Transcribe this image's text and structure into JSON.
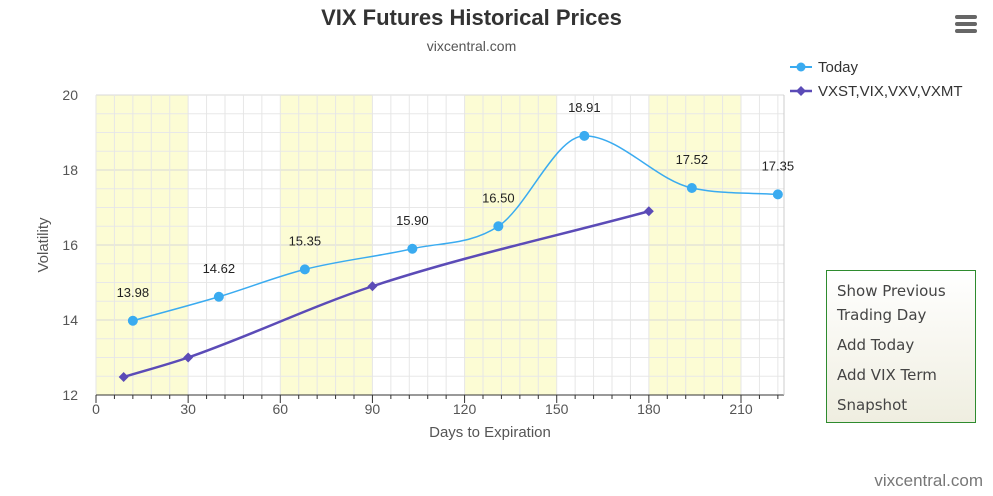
{
  "chart_data": {
    "type": "line",
    "title": "VIX Futures Historical Prices",
    "subtitle": "vixcentral.com",
    "xlabel": "Days to Expiration",
    "ylabel": "Volatility",
    "xlim": [
      0,
      224
    ],
    "ylim": [
      12,
      20
    ],
    "xticks": [
      0,
      30,
      60,
      90,
      120,
      150,
      180,
      210
    ],
    "yticks": [
      12,
      14,
      16,
      18,
      20
    ],
    "bands": [
      [
        0,
        30
      ],
      [
        60,
        90
      ],
      [
        120,
        150
      ],
      [
        180,
        210
      ]
    ],
    "band_color": "#fcfcd4",
    "grid": true,
    "legend_position": "top-right",
    "series": [
      {
        "name": "Today",
        "color": "#3aabf0",
        "marker": "circle",
        "smooth": true,
        "x": [
          12,
          40,
          68,
          103,
          131,
          159,
          194,
          222
        ],
        "y": [
          13.98,
          14.62,
          15.35,
          15.9,
          16.5,
          18.91,
          17.52,
          17.35
        ],
        "labels": [
          "13.98",
          "14.62",
          "15.35",
          "15.90",
          "16.50",
          "18.91",
          "17.52",
          "17.35"
        ]
      },
      {
        "name": "VXST,VIX,VXV,VXMT",
        "color": "#5b4bb7",
        "marker": "diamond",
        "smooth": true,
        "x": [
          9,
          30,
          90,
          180
        ],
        "y": [
          12.48,
          13.0,
          14.9,
          16.9
        ]
      }
    ]
  },
  "menu": {
    "icon": "hamburger-menu-icon"
  },
  "side_panel": {
    "items": [
      "Show Previous Trading Day",
      "Add Today",
      "Add VIX Term",
      "Snapshot"
    ]
  },
  "credit": "vixcentral.com"
}
